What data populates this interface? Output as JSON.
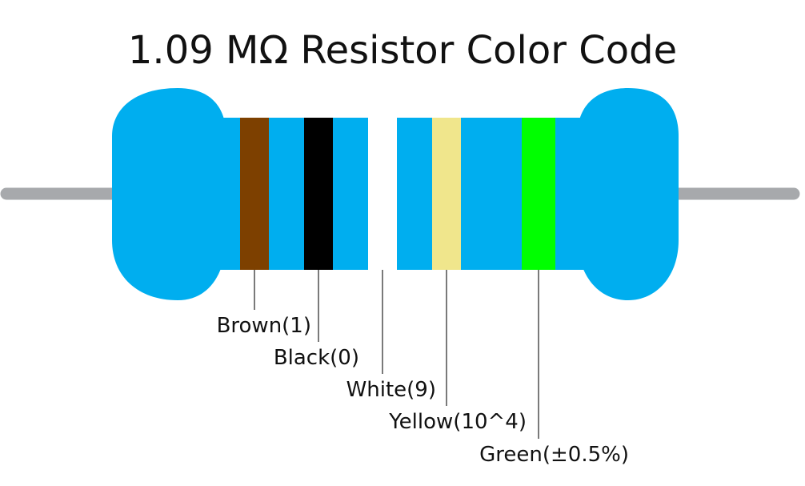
{
  "title": "1.09 MΩ Resistor Color Code",
  "colors": {
    "body": "#00aeef",
    "lead": "#a7a9ac",
    "leader_line": "#222222",
    "text": "#111111"
  },
  "bands": [
    {
      "name": "brown",
      "color": "#7d4000",
      "label": "Brown(1)"
    },
    {
      "name": "black",
      "color": "#000000",
      "label": "Black(0)"
    },
    {
      "name": "white",
      "color": "#ffffff",
      "label": "White(9)"
    },
    {
      "name": "yellow",
      "color": "#f0e68c",
      "label": "Yellow(10^4)"
    },
    {
      "name": "green",
      "color": "#00ff00",
      "label": "Green(±0.5%)"
    }
  ]
}
